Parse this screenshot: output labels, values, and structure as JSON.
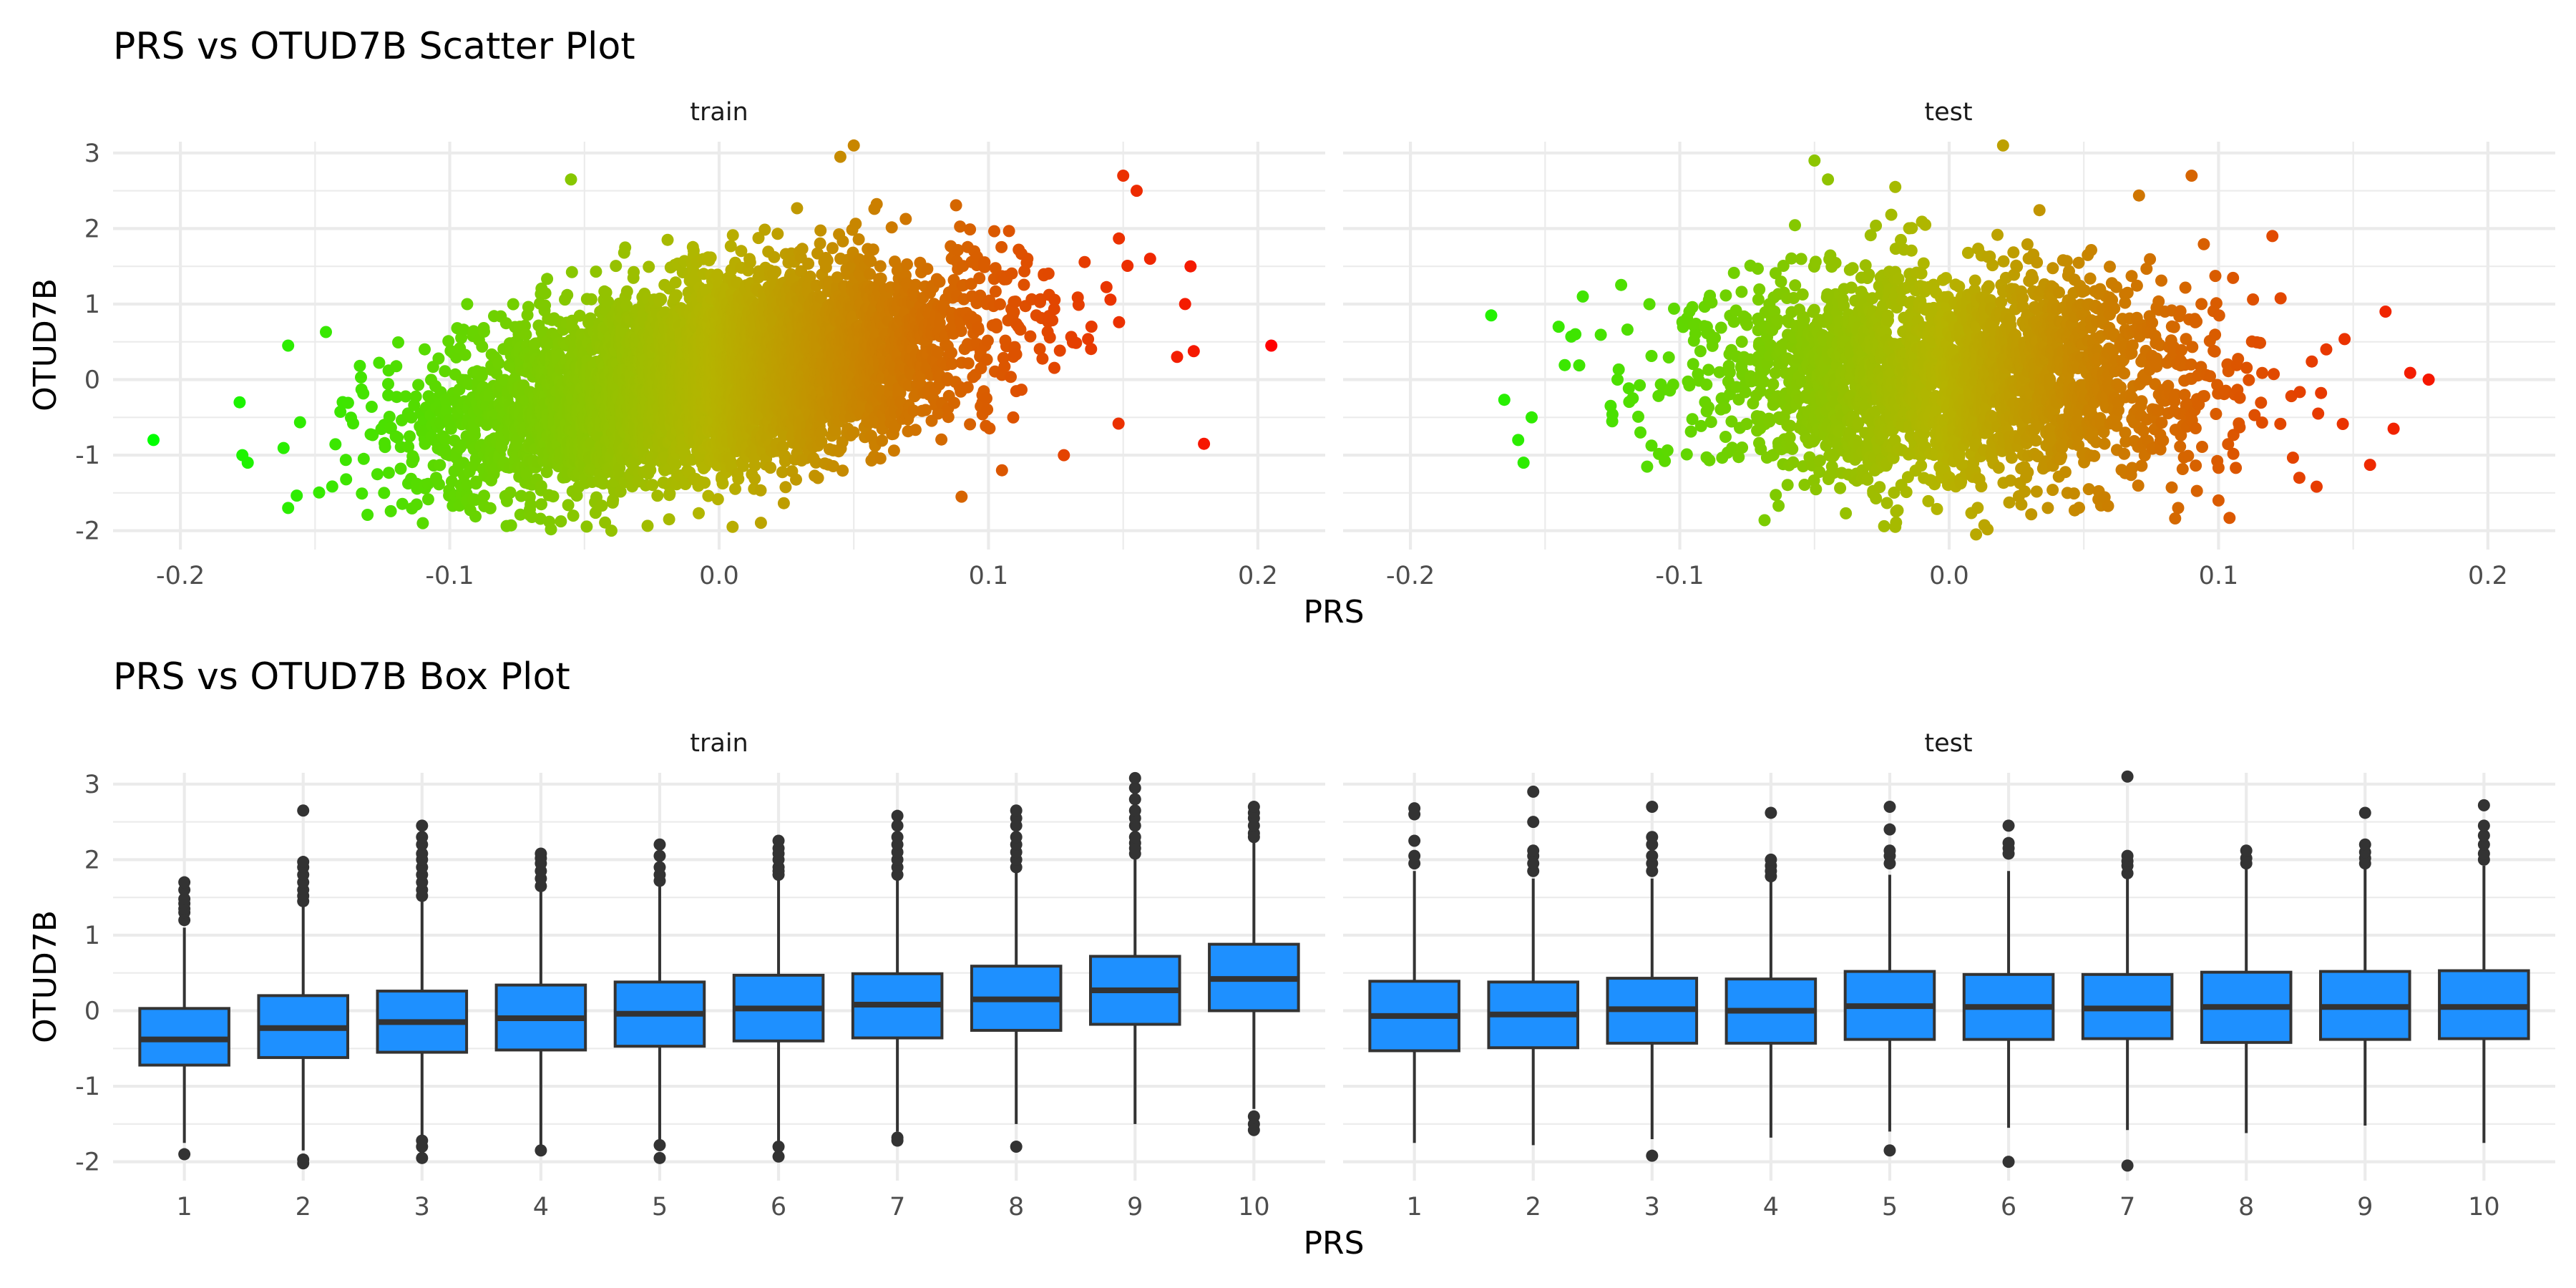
{
  "chart_data": [
    {
      "type": "scatter",
      "title": "PRS vs OTUD7B Scatter Plot",
      "xlabel": "PRS",
      "ylabel": "OTUD7B",
      "facets": [
        "train",
        "test"
      ],
      "xlim": [
        -0.225,
        0.225
      ],
      "ylim": [
        -2.25,
        3.15
      ],
      "x_ticks": [
        -0.2,
        -0.1,
        0.0,
        0.1,
        0.2
      ],
      "x_tick_labels": [
        "-0.2",
        "-0.1",
        "0.0",
        "0.1",
        "0.2"
      ],
      "y_ticks": [
        -2,
        -1,
        0,
        1,
        2,
        3
      ],
      "y_tick_labels": [
        "-2",
        "-1",
        "0",
        "1",
        "2",
        "3"
      ],
      "grid": true,
      "color_gradient": {
        "low": "#00ff00",
        "mid": "#b5b400",
        "high": "#ff0000",
        "mapped_to": "PRS"
      },
      "clouds": {
        "train": {
          "x_mean": -0.003,
          "x_sd": 0.048,
          "y_mean": 0.05,
          "y_sd": 0.68,
          "correlation": 0.45,
          "n_points": 5500
        },
        "test": {
          "x_mean": 0.0,
          "x_sd": 0.047,
          "y_mean": 0.02,
          "y_sd": 0.68,
          "correlation": 0.02,
          "n_points": 2600
        }
      },
      "notable_points": {
        "train": [
          {
            "x": -0.21,
            "y": -0.8
          },
          {
            "x": 0.205,
            "y": 0.45
          },
          {
            "x": 0.18,
            "y": -0.85
          },
          {
            "x": 0.175,
            "y": 1.5
          },
          {
            "x": 0.173,
            "y": 1.0
          },
          {
            "x": 0.17,
            "y": 0.3
          },
          {
            "x": 0.16,
            "y": 1.6
          },
          {
            "x": 0.155,
            "y": 2.5
          },
          {
            "x": 0.15,
            "y": 2.7
          },
          {
            "x": -0.178,
            "y": -0.3
          },
          {
            "x": -0.177,
            "y": -1.0
          },
          {
            "x": -0.175,
            "y": -1.1
          },
          {
            "x": -0.16,
            "y": 0.45
          },
          {
            "x": -0.16,
            "y": -1.7
          },
          {
            "x": -0.11,
            "y": -1.9
          },
          {
            "x": -0.055,
            "y": 2.65
          },
          {
            "x": 0.05,
            "y": 3.1
          },
          {
            "x": 0.045,
            "y": 2.95
          },
          {
            "x": -0.04,
            "y": -2.0
          },
          {
            "x": 0.005,
            "y": -1.95
          },
          {
            "x": 0.09,
            "y": -1.55
          },
          {
            "x": 0.105,
            "y": -1.2
          },
          {
            "x": 0.128,
            "y": -1.0
          }
        ],
        "test": [
          {
            "x": -0.17,
            "y": 0.85
          },
          {
            "x": -0.16,
            "y": -0.8
          },
          {
            "x": -0.158,
            "y": -1.1
          },
          {
            "x": -0.155,
            "y": -0.5
          },
          {
            "x": -0.145,
            "y": 0.7
          },
          {
            "x": -0.136,
            "y": 1.1
          },
          {
            "x": 0.178,
            "y": 0.0
          },
          {
            "x": 0.165,
            "y": -0.65
          },
          {
            "x": 0.162,
            "y": 0.9
          },
          {
            "x": 0.14,
            "y": 0.4
          },
          {
            "x": 0.137,
            "y": -0.45
          },
          {
            "x": 0.13,
            "y": -1.3
          },
          {
            "x": 0.12,
            "y": 1.9
          },
          {
            "x": 0.09,
            "y": 2.7
          },
          {
            "x": 0.02,
            "y": 3.1
          },
          {
            "x": -0.05,
            "y": 2.9
          },
          {
            "x": -0.045,
            "y": 2.65
          },
          {
            "x": -0.02,
            "y": 2.55
          },
          {
            "x": 0.01,
            "y": -2.05
          },
          {
            "x": -0.02,
            "y": -1.95
          },
          {
            "x": 0.1,
            "y": -1.6
          },
          {
            "x": 0.085,
            "y": -1.7
          }
        ]
      }
    },
    {
      "type": "box",
      "title": "PRS vs OTUD7B Box Plot",
      "xlabel": "PRS",
      "ylabel": "OTUD7B",
      "facets": [
        "train",
        "test"
      ],
      "categories": [
        "1",
        "2",
        "3",
        "4",
        "5",
        "6",
        "7",
        "8",
        "9",
        "10"
      ],
      "ylim": [
        -2.25,
        3.15
      ],
      "y_ticks": [
        -2,
        -1,
        0,
        1,
        2,
        3
      ],
      "y_tick_labels": [
        "-2",
        "-1",
        "0",
        "1",
        "2",
        "3"
      ],
      "grid": true,
      "box_color": "#1e90ff",
      "outline_color": "#333333",
      "series": [
        {
          "name": "train",
          "boxes": [
            {
              "q1": -0.72,
              "median": -0.38,
              "q3": 0.03,
              "lower": -1.75,
              "upper": 1.1,
              "outliers": [
                1.2,
                1.3,
                1.35,
                1.42,
                1.48,
                1.6,
                1.7,
                -1.9
              ]
            },
            {
              "q1": -0.62,
              "median": -0.23,
              "q3": 0.2,
              "lower": -1.85,
              "upper": 1.4,
              "outliers": [
                1.45,
                1.52,
                1.6,
                1.7,
                1.8,
                1.9,
                1.97,
                2.65,
                -1.97,
                -2.02
              ]
            },
            {
              "q1": -0.55,
              "median": -0.15,
              "q3": 0.26,
              "lower": -1.65,
              "upper": 1.45,
              "outliers": [
                1.52,
                1.6,
                1.7,
                1.8,
                1.9,
                2.0,
                2.08,
                2.2,
                2.3,
                2.45,
                -1.72,
                -1.8,
                -1.95
              ]
            },
            {
              "q1": -0.52,
              "median": -0.1,
              "q3": 0.34,
              "lower": -1.8,
              "upper": 1.6,
              "outliers": [
                1.65,
                1.75,
                1.85,
                1.95,
                2.02,
                2.08,
                -1.85
              ]
            },
            {
              "q1": -0.47,
              "median": -0.04,
              "q3": 0.38,
              "lower": -1.7,
              "upper": 1.65,
              "outliers": [
                1.72,
                1.8,
                1.9,
                2.05,
                2.2,
                -1.78,
                -1.95
              ]
            },
            {
              "q1": -0.4,
              "median": 0.03,
              "q3": 0.47,
              "lower": -1.75,
              "upper": 1.75,
              "outliers": [
                1.8,
                1.85,
                1.9,
                2.0,
                2.08,
                2.15,
                2.25,
                -1.8,
                -1.93
              ]
            },
            {
              "q1": -0.36,
              "median": 0.08,
              "q3": 0.49,
              "lower": -1.6,
              "upper": 1.75,
              "outliers": [
                1.8,
                1.9,
                2.0,
                2.1,
                2.2,
                2.3,
                2.45,
                2.58,
                -1.68,
                -1.72
              ]
            },
            {
              "q1": -0.26,
              "median": 0.15,
              "q3": 0.59,
              "lower": -1.5,
              "upper": 1.85,
              "outliers": [
                1.9,
                2.0,
                2.1,
                2.2,
                2.3,
                2.45,
                2.55,
                2.65,
                -1.8
              ]
            },
            {
              "q1": -0.18,
              "median": 0.27,
              "q3": 0.72,
              "lower": -1.5,
              "upper": 2.05,
              "outliers": [
                2.08,
                2.15,
                2.22,
                2.3,
                2.45,
                2.55,
                2.65,
                2.8,
                2.95,
                3.08
              ]
            },
            {
              "q1": 0.0,
              "median": 0.42,
              "q3": 0.88,
              "lower": -1.3,
              "upper": 2.25,
              "outliers": [
                2.3,
                2.35,
                2.45,
                2.55,
                2.62,
                2.7,
                -1.4,
                -1.5,
                -1.58
              ]
            }
          ]
        },
        {
          "name": "test",
          "boxes": [
            {
              "q1": -0.53,
              "median": -0.07,
              "q3": 0.39,
              "lower": -1.75,
              "upper": 1.85,
              "outliers": [
                1.95,
                2.05,
                2.25,
                2.6,
                2.68
              ]
            },
            {
              "q1": -0.49,
              "median": -0.05,
              "q3": 0.38,
              "lower": -1.78,
              "upper": 1.75,
              "outliers": [
                1.85,
                1.95,
                2.05,
                2.12,
                2.5,
                2.9
              ]
            },
            {
              "q1": -0.43,
              "median": 0.02,
              "q3": 0.43,
              "lower": -1.7,
              "upper": 1.75,
              "outliers": [
                1.85,
                1.95,
                2.05,
                2.2,
                2.3,
                2.7,
                -1.92
              ]
            },
            {
              "q1": -0.43,
              "median": 0.0,
              "q3": 0.42,
              "lower": -1.68,
              "upper": 1.72,
              "outliers": [
                1.78,
                1.85,
                1.92,
                2.0,
                2.62
              ]
            },
            {
              "q1": -0.38,
              "median": 0.06,
              "q3": 0.52,
              "lower": -1.6,
              "upper": 1.8,
              "outliers": [
                1.95,
                2.05,
                2.12,
                2.4,
                2.7,
                -1.85
              ]
            },
            {
              "q1": -0.38,
              "median": 0.05,
              "q3": 0.48,
              "lower": -1.55,
              "upper": 1.85,
              "outliers": [
                2.08,
                2.15,
                2.22,
                2.45,
                -2.0
              ]
            },
            {
              "q1": -0.37,
              "median": 0.03,
              "q3": 0.48,
              "lower": -1.58,
              "upper": 1.75,
              "outliers": [
                1.82,
                1.92,
                1.98,
                2.05,
                3.1,
                -2.05
              ]
            },
            {
              "q1": -0.42,
              "median": 0.05,
              "q3": 0.51,
              "lower": -1.62,
              "upper": 1.88,
              "outliers": [
                1.95,
                2.02,
                2.12
              ]
            },
            {
              "q1": -0.38,
              "median": 0.05,
              "q3": 0.52,
              "lower": -1.52,
              "upper": 1.9,
              "outliers": [
                1.95,
                2.02,
                2.1,
                2.2,
                2.62
              ]
            },
            {
              "q1": -0.37,
              "median": 0.05,
              "q3": 0.53,
              "lower": -1.75,
              "upper": 1.92,
              "outliers": [
                2.0,
                2.08,
                2.2,
                2.32,
                2.45,
                2.72
              ]
            }
          ]
        }
      ]
    }
  ]
}
